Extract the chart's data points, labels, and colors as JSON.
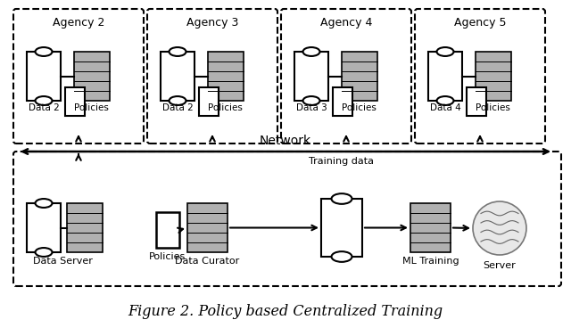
{
  "title": "Figure 2. Policy based Centralized Training",
  "agencies": [
    "Agency 2",
    "Agency 3",
    "Agency 4",
    "Agency 5"
  ],
  "agency_data_labels": [
    "Data 2",
    "Data 2",
    "Data 3",
    "Data 4"
  ],
  "network_label": "Network",
  "training_data_label": "Training data",
  "policies_label": "Policies",
  "bottom_labels": [
    "Data Server",
    "Data Curator",
    "ML Training",
    "Server"
  ],
  "bg_color": "#ffffff",
  "box_color": "#000000",
  "fill_color": "#f0f0f0"
}
